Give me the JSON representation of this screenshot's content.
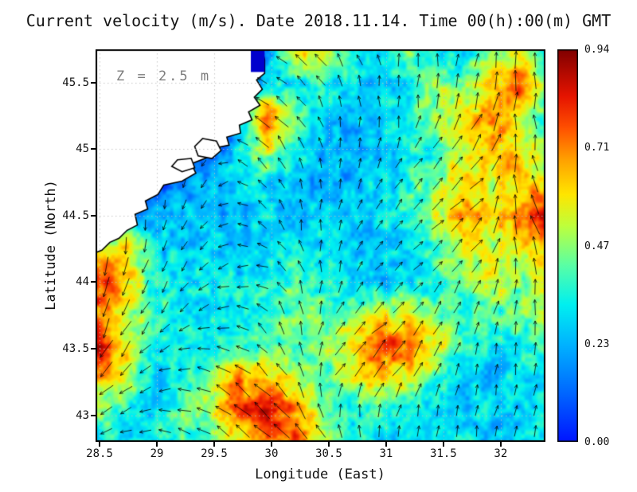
{
  "title": "Current velocity (m/s). Date 2018.11.14. Time 00(h):00(m) GMT",
  "annotation": "Z = 2.5 m",
  "axes": {
    "x_label": "Longitude (East)",
    "y_label": "Latitude (North)",
    "x_tick_labels": [
      "28.5",
      "29",
      "29.5",
      "30",
      "30.5",
      "31",
      "31.5",
      "32"
    ],
    "y_tick_labels": [
      "45.5",
      "45",
      "44.5",
      "44",
      "43.5",
      "43"
    ],
    "x_range": [
      28.465,
      32.39
    ],
    "y_range": [
      42.8,
      45.75
    ],
    "grid": "dotted"
  },
  "colorbar": {
    "labels_top_to_bottom": [
      "0.94",
      "0.71",
      "0.47",
      "0.23",
      "0.00"
    ],
    "min": 0.0,
    "max": 0.94,
    "units": "m/s"
  },
  "chart_data": {
    "type": "heatmap",
    "overlays": [
      "quiver",
      "coastline"
    ],
    "title": "Current velocity (m/s). Date 2018.11.14. Time 00(h):00(m) GMT",
    "variable": "current speed",
    "units": "m/s",
    "depth": "Z = 2.5 m",
    "x_axis": "Longitude (East)",
    "y_axis": "Latitude (North)",
    "value_range": [
      0.0,
      0.94
    ],
    "speed_grid_meta": {
      "nx": 17,
      "ny": 13,
      "x_left": 28.5,
      "x_right": 32.4,
      "y_top": 45.72,
      "y_bottom": 42.8,
      "row_order": "north_to_south"
    },
    "speed_grid_north_to_south": [
      [
        0,
        0,
        0,
        0,
        0,
        0,
        0.2,
        0.55,
        0.6,
        0.35,
        0.3,
        0.45,
        0.35,
        0.3,
        0.45,
        0.55,
        0.35
      ],
      [
        0,
        0,
        0,
        0,
        0,
        0.2,
        0.35,
        0.3,
        0.35,
        0.3,
        0.25,
        0.3,
        0.5,
        0.45,
        0.6,
        0.8,
        0.45
      ],
      [
        0,
        0,
        0,
        0,
        0,
        0.25,
        0.75,
        0.45,
        0.3,
        0.25,
        0.3,
        0.35,
        0.45,
        0.6,
        0.7,
        0.5,
        0.4
      ],
      [
        0,
        0,
        0,
        0,
        0.1,
        0.3,
        0.55,
        0.35,
        0.25,
        0.2,
        0.25,
        0.3,
        0.4,
        0.55,
        0.65,
        0.6,
        0.45
      ],
      [
        0,
        0,
        0,
        0.15,
        0.25,
        0.3,
        0.3,
        0.25,
        0.2,
        0.25,
        0.3,
        0.35,
        0.45,
        0.6,
        0.55,
        0.65,
        0.55
      ],
      [
        0.1,
        0.2,
        0.25,
        0.3,
        0.2,
        0.25,
        0.3,
        0.25,
        0.3,
        0.25,
        0.3,
        0.35,
        0.5,
        0.65,
        0.6,
        0.7,
        0.85
      ],
      [
        0.5,
        0.6,
        0.3,
        0.25,
        0.3,
        0.25,
        0.3,
        0.35,
        0.3,
        0.25,
        0.3,
        0.3,
        0.4,
        0.55,
        0.5,
        0.6,
        0.65
      ],
      [
        0.8,
        0.65,
        0.35,
        0.3,
        0.35,
        0.3,
        0.35,
        0.4,
        0.35,
        0.3,
        0.25,
        0.3,
        0.35,
        0.45,
        0.55,
        0.45,
        0.5
      ],
      [
        0.7,
        0.55,
        0.4,
        0.35,
        0.3,
        0.35,
        0.4,
        0.45,
        0.4,
        0.45,
        0.5,
        0.55,
        0.45,
        0.35,
        0.4,
        0.45,
        0.55
      ],
      [
        0.85,
        0.6,
        0.35,
        0.3,
        0.35,
        0.4,
        0.35,
        0.4,
        0.45,
        0.6,
        0.8,
        0.75,
        0.55,
        0.4,
        0.3,
        0.35,
        0.4
      ],
      [
        0.65,
        0.5,
        0.3,
        0.35,
        0.45,
        0.7,
        0.6,
        0.5,
        0.4,
        0.5,
        0.65,
        0.55,
        0.4,
        0.3,
        0.25,
        0.3,
        0.35
      ],
      [
        0.45,
        0.35,
        0.3,
        0.4,
        0.5,
        0.75,
        0.85,
        0.7,
        0.45,
        0.35,
        0.4,
        0.35,
        0.3,
        0.25,
        0.3,
        0.25,
        0.3
      ],
      [
        0.35,
        0.3,
        0.35,
        0.4,
        0.45,
        0.55,
        0.7,
        0.75,
        0.5,
        0.35,
        0.3,
        0.25,
        0.3,
        0.35,
        0.25,
        0.3,
        0.35
      ]
    ],
    "direction_grid_meta": {
      "nx": 10,
      "ny": 8,
      "x0": 28.6,
      "dx": 0.4,
      "y0": 42.9,
      "dy": 0.4,
      "row_order": "south_to_north",
      "angle_convention": "deg_ccw_from_east"
    },
    "direction_grid_deg": [
      [
        200,
        180,
        150,
        140,
        130,
        110,
        90,
        85,
        80,
        75
      ],
      [
        230,
        200,
        160,
        140,
        120,
        60,
        50,
        70,
        80,
        80
      ],
      [
        250,
        230,
        200,
        150,
        100,
        45,
        45,
        60,
        75,
        85
      ],
      [
        260,
        250,
        220,
        180,
        120,
        80,
        45,
        50,
        60,
        90
      ],
      [
        270,
        260,
        230,
        160,
        100,
        70,
        50,
        45,
        45,
        110
      ],
      [
        280,
        270,
        240,
        140,
        110,
        90,
        70,
        50,
        45,
        100
      ],
      [
        290,
        280,
        200,
        160,
        130,
        100,
        90,
        80,
        70,
        90
      ],
      [
        270,
        260,
        220,
        170,
        150,
        120,
        100,
        90,
        85,
        95
      ]
    ],
    "colormap_stops": [
      [
        0.0,
        "#0014ff"
      ],
      [
        0.12,
        "#0064ff"
      ],
      [
        0.25,
        "#00b4ff"
      ],
      [
        0.35,
        "#00f0f0"
      ],
      [
        0.45,
        "#5affa5"
      ],
      [
        0.55,
        "#beff3c"
      ],
      [
        0.63,
        "#ffe600"
      ],
      [
        0.72,
        "#ffa000"
      ],
      [
        0.8,
        "#ff5000"
      ],
      [
        0.88,
        "#e61400"
      ],
      [
        1.0,
        "#800000"
      ]
    ],
    "land": {
      "coast_polygon": [
        [
          29.92,
          45.75
        ],
        [
          29.94,
          45.67
        ],
        [
          29.94,
          45.57
        ],
        [
          29.87,
          45.52
        ],
        [
          29.92,
          45.45
        ],
        [
          29.85,
          45.39
        ],
        [
          29.9,
          45.33
        ],
        [
          29.8,
          45.28
        ],
        [
          29.83,
          45.22
        ],
        [
          29.72,
          45.18
        ],
        [
          29.73,
          45.12
        ],
        [
          29.61,
          45.09
        ],
        [
          29.63,
          45.03
        ],
        [
          29.51,
          45.01
        ],
        [
          29.45,
          44.94
        ],
        [
          29.3,
          44.89
        ],
        [
          29.34,
          44.82
        ],
        [
          29.22,
          44.76
        ],
        [
          29.06,
          44.73
        ],
        [
          29.01,
          44.66
        ],
        [
          28.9,
          44.61
        ],
        [
          28.92,
          44.55
        ],
        [
          28.81,
          44.51
        ],
        [
          28.83,
          44.43
        ],
        [
          28.74,
          44.39
        ],
        [
          28.67,
          44.33
        ],
        [
          28.59,
          44.3
        ],
        [
          28.52,
          44.24
        ],
        [
          28.46,
          44.22
        ],
        [
          28.46,
          45.75
        ]
      ],
      "lagoons": [
        [
          [
            29.4,
            45.08
          ],
          [
            29.52,
            45.06
          ],
          [
            29.56,
            44.99
          ],
          [
            29.48,
            44.93
          ],
          [
            29.36,
            44.95
          ],
          [
            29.33,
            45.02
          ]
        ],
        [
          [
            29.18,
            44.92
          ],
          [
            29.3,
            44.93
          ],
          [
            29.33,
            44.86
          ],
          [
            29.22,
            44.83
          ],
          [
            29.13,
            44.87
          ]
        ]
      ],
      "river_rect": [
        29.82,
        45.58,
        29.94,
        45.74
      ],
      "river_color": "#0000cd"
    }
  }
}
